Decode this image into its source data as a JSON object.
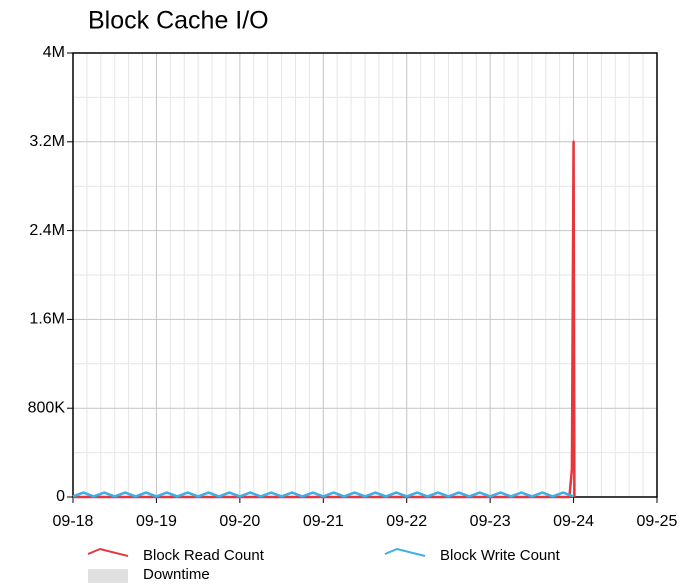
{
  "chart_data": {
    "type": "line",
    "title": "Block Cache I/O",
    "xlim": [
      18,
      25
    ],
    "xticks": [
      {
        "value": 18,
        "label": "09-18"
      },
      {
        "value": 19,
        "label": "09-19"
      },
      {
        "value": 20,
        "label": "09-20"
      },
      {
        "value": 21,
        "label": "09-21"
      },
      {
        "value": 22,
        "label": "09-22"
      },
      {
        "value": 23,
        "label": "09-23"
      },
      {
        "value": 24,
        "label": "09-24"
      },
      {
        "value": 25,
        "label": "09-25"
      }
    ],
    "ylim": [
      0,
      4000000
    ],
    "yticks": [
      0,
      {
        "value": 800000,
        "label": "800K"
      },
      {
        "value": 1600000,
        "label": "1.6M"
      },
      {
        "value": 2400000,
        "label": "2.4M"
      },
      {
        "value": 3200000,
        "label": "3.2M"
      },
      {
        "value": 4000000,
        "label": "4M"
      }
    ],
    "grid": true,
    "series": [
      {
        "name": "Block Read Count",
        "color": "#e8343b",
        "x": [
          18,
          23.95,
          23.98,
          24.0,
          24.01
        ],
        "values": [
          0,
          0,
          250000,
          3200000,
          0
        ]
      },
      {
        "name": "Block Write Count",
        "color": "#3daee9",
        "x": [
          18,
          18.125,
          18.25,
          18.375,
          18.5,
          18.625,
          18.75,
          18.875,
          19,
          19.125,
          19.25,
          19.375,
          19.5,
          19.625,
          19.75,
          19.875,
          20,
          20.125,
          20.25,
          20.375,
          20.5,
          20.625,
          20.75,
          20.875,
          21,
          21.125,
          21.25,
          21.375,
          21.5,
          21.625,
          21.75,
          21.875,
          22,
          22.125,
          22.25,
          22.375,
          22.5,
          22.625,
          22.75,
          22.875,
          23,
          23.125,
          23.25,
          23.375,
          23.5,
          23.625,
          23.75,
          23.875,
          24
        ],
        "values": [
          5000,
          40000,
          5000,
          40000,
          5000,
          40000,
          5000,
          40000,
          5000,
          40000,
          5000,
          40000,
          5000,
          40000,
          5000,
          40000,
          5000,
          40000,
          5000,
          40000,
          5000,
          40000,
          5000,
          40000,
          5000,
          40000,
          5000,
          40000,
          5000,
          40000,
          5000,
          40000,
          5000,
          40000,
          5000,
          40000,
          5000,
          40000,
          5000,
          40000,
          5000,
          40000,
          5000,
          40000,
          5000,
          40000,
          5000,
          40000,
          5000
        ]
      }
    ],
    "downtime": {
      "name": "Downtime",
      "color": "#e0e0e0"
    }
  }
}
